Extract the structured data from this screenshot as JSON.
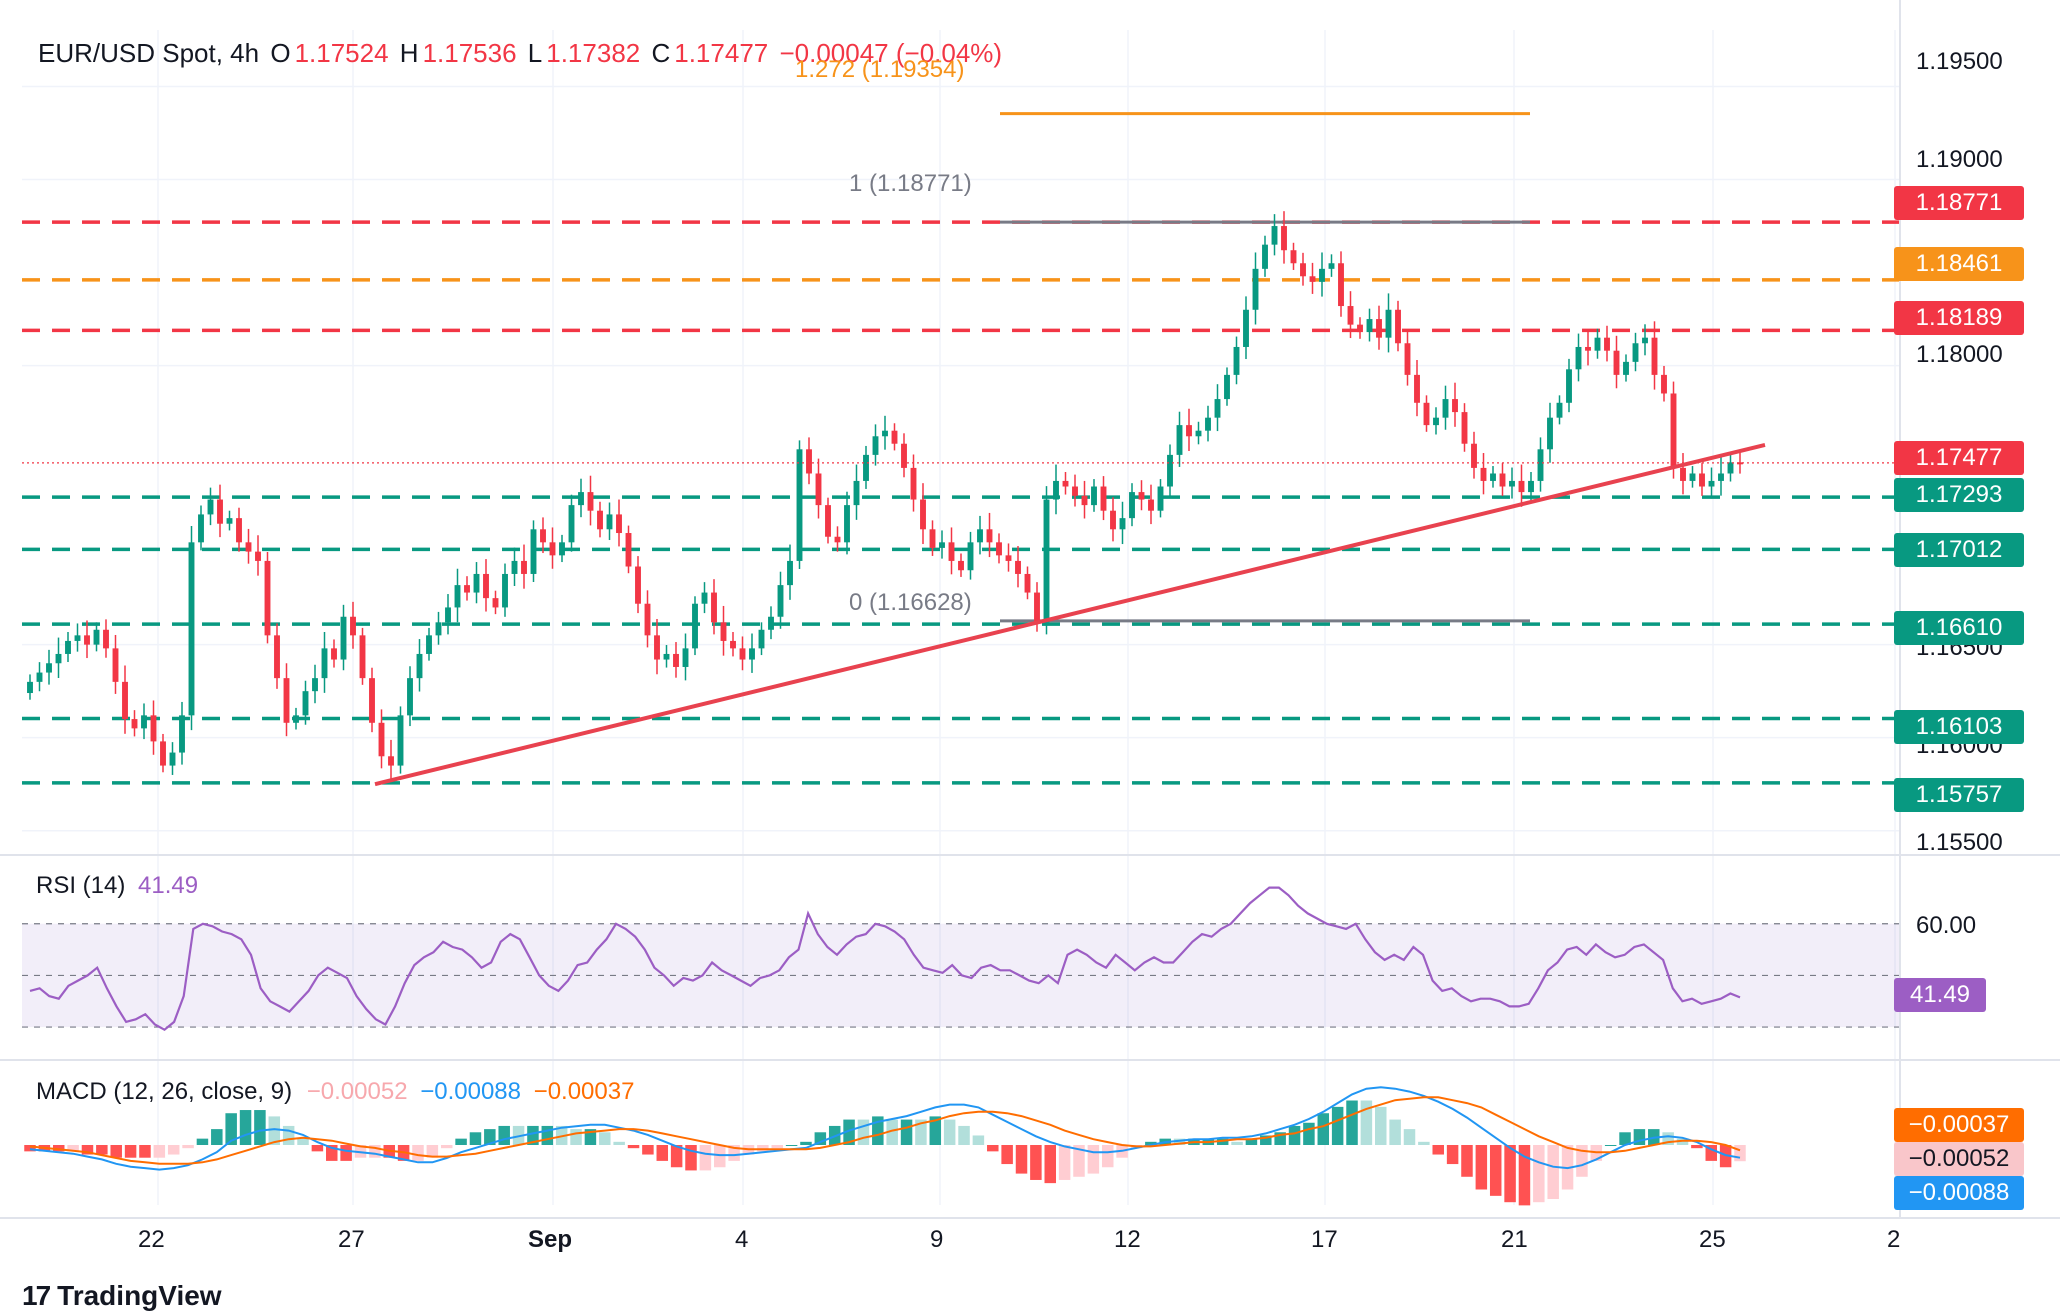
{
  "header": {
    "symbol": "EUR/USD Spot, 4h",
    "open_label": "O",
    "open": "1.17524",
    "high_label": "H",
    "high": "1.17536",
    "low_label": "L",
    "low": "1.17382",
    "close_label": "C",
    "close": "1.17477",
    "change": "−0.00047 (−0.04%)"
  },
  "colors": {
    "up": "#089981",
    "down": "#f23645",
    "orange": "#f7931a",
    "gray": "#787b86",
    "rsi": "#9c5ec4",
    "macd": "#2196f3",
    "signal": "#ff6d00",
    "trend": "#e8424f"
  },
  "chart_data": [
    {
      "type": "candlestick",
      "title": "EUR/USD Spot, 4h",
      "ylim": [
        1.1545,
        1.1975
      ],
      "y_ticks": [
        "1.19500",
        "1.19000",
        "1.18000",
        "1.16500",
        "1.16000",
        "1.15500"
      ],
      "x_ticks": [
        "22",
        "27",
        "Sep",
        "4",
        "9",
        "12",
        "17",
        "21",
        "25",
        "2"
      ],
      "last_price": "1.17477",
      "horizontal_levels": [
        {
          "value": 1.18771,
          "label": "1.18771",
          "color": "red"
        },
        {
          "value": 1.18461,
          "label": "1.18461",
          "color": "orange"
        },
        {
          "value": 1.18189,
          "label": "1.18189",
          "color": "red"
        },
        {
          "value": 1.17293,
          "label": "1.17293",
          "color": "green"
        },
        {
          "value": 1.17012,
          "label": "1.17012",
          "color": "green"
        },
        {
          "value": 1.1661,
          "label": "1.16610",
          "color": "green"
        },
        {
          "value": 1.16103,
          "label": "1.16103",
          "color": "green"
        },
        {
          "value": 1.15757,
          "label": "1.15757",
          "color": "green"
        }
      ],
      "fibonacci": [
        {
          "label": "1.272 (1.19354)",
          "value": 1.19354,
          "color": "orange"
        },
        {
          "label": "1 (1.18771)",
          "value": 1.18771,
          "color": "gray"
        },
        {
          "label": "0 (1.16628)",
          "value": 1.16628,
          "color": "gray"
        }
      ],
      "trendline": {
        "from": {
          "date": "Aug 27",
          "value": 1.1575
        },
        "to": {
          "date": "Sep 25",
          "value": 1.1752
        }
      },
      "closes": [
        1.163,
        1.1635,
        1.164,
        1.1645,
        1.1652,
        1.1655,
        1.165,
        1.1658,
        1.1648,
        1.163,
        1.161,
        1.1605,
        1.1612,
        1.1598,
        1.1585,
        1.1592,
        1.1612,
        1.1705,
        1.172,
        1.1728,
        1.1715,
        1.1718,
        1.1705,
        1.17,
        1.1695,
        1.1655,
        1.1632,
        1.1608,
        1.1612,
        1.1625,
        1.1632,
        1.1648,
        1.1642,
        1.1665,
        1.1655,
        1.1632,
        1.1608,
        1.159,
        1.1585,
        1.1612,
        1.1632,
        1.1645,
        1.1655,
        1.1662,
        1.167,
        1.1682,
        1.1678,
        1.1688,
        1.1675,
        1.167,
        1.1688,
        1.1695,
        1.1688,
        1.1712,
        1.1705,
        1.1698,
        1.1705,
        1.1725,
        1.1732,
        1.1722,
        1.1712,
        1.172,
        1.171,
        1.1692,
        1.1672,
        1.1655,
        1.1642,
        1.1645,
        1.1638,
        1.1648,
        1.1672,
        1.1678,
        1.1662,
        1.1652,
        1.1648,
        1.1642,
        1.1648,
        1.1658,
        1.1665,
        1.1682,
        1.1695,
        1.1755,
        1.1742,
        1.1725,
        1.1708,
        1.1705,
        1.1725,
        1.1738,
        1.1752,
        1.1762,
        1.1765,
        1.1758,
        1.1745,
        1.1728,
        1.1712,
        1.1702,
        1.1705,
        1.1695,
        1.169,
        1.1705,
        1.1712,
        1.1705,
        1.1698,
        1.1695,
        1.1688,
        1.1678,
        1.1662,
        1.1728,
        1.1738,
        1.1735,
        1.173,
        1.1725,
        1.1735,
        1.1722,
        1.1712,
        1.1718,
        1.1732,
        1.1728,
        1.1722,
        1.1735,
        1.1752,
        1.1768,
        1.1762,
        1.1765,
        1.1772,
        1.1782,
        1.1795,
        1.181,
        1.183,
        1.1852,
        1.1865,
        1.1875,
        1.1862,
        1.1855,
        1.1848,
        1.1845,
        1.1852,
        1.1855,
        1.1832,
        1.1822,
        1.1818,
        1.1825,
        1.1815,
        1.183,
        1.1812,
        1.1795,
        1.178,
        1.1768,
        1.1772,
        1.1782,
        1.1775,
        1.1758,
        1.1745,
        1.1738,
        1.1742,
        1.1735,
        1.1738,
        1.1732,
        1.1738,
        1.1755,
        1.1772,
        1.178,
        1.1798,
        1.181,
        1.1808,
        1.1815,
        1.1808,
        1.1795,
        1.1802,
        1.1812,
        1.1815,
        1.1795,
        1.1785,
        1.1745,
        1.1738,
        1.1742,
        1.1735,
        1.1738,
        1.1742,
        1.1748,
        1.17477
      ]
    },
    {
      "type": "line",
      "title": "RSI (14)",
      "last_value": "41.49",
      "ylim": [
        25,
        85
      ],
      "y_ticks": [
        "60.00"
      ],
      "guides": [
        70,
        50,
        30
      ],
      "series": [
        {
          "name": "RSI (14)",
          "values": [
            44,
            45,
            42,
            41,
            46,
            48,
            50,
            53,
            45,
            38,
            32,
            33,
            35,
            31,
            29,
            32,
            42,
            68,
            70,
            69,
            67,
            66,
            64,
            58,
            45,
            40,
            38,
            36,
            40,
            44,
            50,
            53,
            51,
            49,
            42,
            37,
            33,
            31,
            38,
            47,
            54,
            57,
            59,
            63,
            61,
            60,
            57,
            53,
            55,
            63,
            66,
            64,
            57,
            50,
            46,
            44,
            48,
            54,
            55,
            60,
            64,
            70,
            68,
            65,
            60,
            53,
            50,
            46,
            49,
            48,
            50,
            55,
            52,
            50,
            48,
            46,
            49,
            50,
            52,
            57,
            60,
            74,
            66,
            61,
            58,
            62,
            65,
            66,
            70,
            69,
            67,
            64,
            58,
            53,
            52,
            51,
            54,
            50,
            49,
            53,
            54,
            52,
            52,
            50,
            48,
            47,
            50,
            47,
            58,
            60,
            58,
            55,
            53,
            58,
            55,
            52,
            55,
            57,
            55,
            55,
            59,
            63,
            66,
            65,
            68,
            70,
            74,
            78,
            81,
            84,
            84,
            81,
            77,
            74,
            72,
            70,
            69,
            68,
            70,
            64,
            59,
            56,
            58,
            56,
            61,
            58,
            48,
            44,
            45,
            42,
            40,
            41,
            41,
            40,
            38,
            38,
            39,
            45,
            52,
            55,
            60,
            61,
            58,
            62,
            59,
            57,
            58,
            61,
            62,
            59,
            56,
            45,
            40,
            41,
            39,
            40,
            41,
            43,
            41.49
          ]
        }
      ]
    },
    {
      "type": "bar",
      "title": "MACD (12, 26, close, 9)",
      "legend_values": [
        "−0.00052",
        "−0.00088",
        "−0.00037"
      ],
      "last_values": {
        "signal": "−0.00037",
        "histogram": "−0.00052",
        "macd": "−0.00088"
      },
      "series": [
        {
          "name": "MACD",
          "values": [
            -0.0003,
            -0.0004,
            -0.0005,
            -0.0006,
            -0.0008,
            -0.001,
            -0.0013,
            -0.0015,
            -0.0016,
            -0.0017,
            -0.0016,
            -0.0014,
            -0.001,
            -0.0005,
            0.0003,
            0.0007,
            0.001,
            0.0011,
            0.001,
            0.0007,
            0.0002,
            -0.0002,
            -0.0004,
            -0.0005,
            -0.0006,
            -0.0008,
            -0.001,
            -0.0012,
            -0.0012,
            -0.0009,
            -0.0005,
            -0.0002,
            0.0001,
            0.0004,
            0.0006,
            0.0008,
            0.001,
            0.0012,
            0.0013,
            0.0014,
            0.0014,
            0.0012,
            0.001,
            0.0007,
            0.0003,
            -0.0001,
            -0.0004,
            -0.0006,
            -0.0007,
            -0.0007,
            -0.0006,
            -0.0005,
            -0.0004,
            -0.0003,
            -0.0002,
            0.0002,
            0.0006,
            0.001,
            0.0013,
            0.0016,
            0.0018,
            0.002,
            0.0023,
            0.0026,
            0.0028,
            0.0028,
            0.0026,
            0.0021,
            0.0016,
            0.0011,
            0.0006,
            0.0002,
            -0.0001,
            -0.0003,
            -0.0005,
            -0.0005,
            -0.0004,
            -0.0002,
            0,
            0.0002,
            0.0003,
            0.0004,
            0.0004,
            0.0005,
            0.0005,
            0.0006,
            0.0008,
            0.0011,
            0.0014,
            0.0018,
            0.0023,
            0.0029,
            0.0035,
            0.0039,
            0.004,
            0.0039,
            0.0037,
            0.0034,
            0.003,
            0.0025,
            0.0019,
            0.0012,
            0.0005,
            -0.0002,
            -0.0008,
            -0.0012,
            -0.0015,
            -0.0016,
            -0.0014,
            -0.001,
            -0.0005,
            0,
            0.0003,
            0.0005,
            0.0006,
            0.0005,
            0.0002,
            -0.0003,
            -0.0007,
            -0.00088
          ]
        },
        {
          "name": "Signal",
          "values": [
            -0.0001,
            -0.0002,
            -0.0003,
            -0.0004,
            -0.0005,
            -0.0007,
            -0.0009,
            -0.0011,
            -0.0012,
            -0.0013,
            -0.0013,
            -0.0013,
            -0.0012,
            -0.001,
            -0.0007,
            -0.0004,
            -0.0001,
            0.0002,
            0.0004,
            0.0005,
            0.0004,
            0.0003,
            0.0001,
            -0.0001,
            -0.0002,
            -0.0004,
            -0.0005,
            -0.0007,
            -0.0008,
            -0.0008,
            -0.0007,
            -0.0006,
            -0.0004,
            -0.0002,
            0,
            0.0002,
            0.0004,
            0.0006,
            0.0008,
            0.0009,
            0.001,
            0.0011,
            0.0011,
            0.001,
            0.0008,
            0.0006,
            0.0004,
            0.0002,
            0,
            -0.0002,
            -0.0003,
            -0.0003,
            -0.0003,
            -0.0003,
            -0.0003,
            -0.0002,
            0,
            0.0002,
            0.0005,
            0.0007,
            0.001,
            0.0012,
            0.0015,
            0.0017,
            0.002,
            0.0022,
            0.0023,
            0.0023,
            0.0022,
            0.002,
            0.0017,
            0.0014,
            0.001,
            0.0007,
            0.0004,
            0.0002,
            0,
            -0.0001,
            -0.0001,
            0,
            0.0001,
            0.0002,
            0.0002,
            0.0003,
            0.0004,
            0.0004,
            0.0005,
            0.0007,
            0.0008,
            0.0011,
            0.0013,
            0.0017,
            0.0021,
            0.0025,
            0.0028,
            0.0031,
            0.0032,
            0.0033,
            0.0033,
            0.0031,
            0.0029,
            0.0026,
            0.0021,
            0.0016,
            0.0011,
            0.0006,
            0.0002,
            -0.0002,
            -0.0004,
            -0.0005,
            -0.0005,
            -0.0004,
            -0.0002,
            0,
            0.0002,
            0.0003,
            0.0003,
            0.0002,
            0,
            -0.00037
          ]
        }
      ]
    }
  ],
  "brand": "TradingView"
}
